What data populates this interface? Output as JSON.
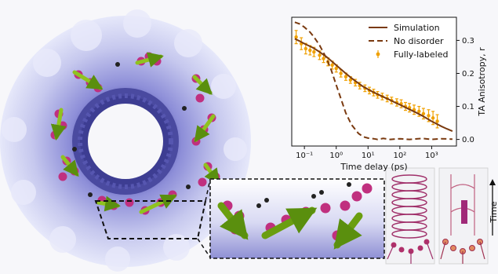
{
  "chart_data": {
    "type": "scatter",
    "xscale": "log",
    "xlabel": "Time delay (ps)",
    "ylabel": "TA Anisotropy, r",
    "xlim": [
      0.04,
      6000
    ],
    "ylim": [
      -0.02,
      0.37
    ],
    "x_ticks": [
      {
        "value": 0.1,
        "label": "10⁻¹"
      },
      {
        "value": 1,
        "label": "10⁰"
      },
      {
        "value": 10,
        "label": "10¹"
      },
      {
        "value": 100,
        "label": "10²"
      },
      {
        "value": 1000,
        "label": "10³"
      }
    ],
    "y_ticks": [
      {
        "value": 0.0,
        "label": "0.0"
      },
      {
        "value": 0.1,
        "label": "0.1"
      },
      {
        "value": 0.2,
        "label": "0.2"
      },
      {
        "value": 0.3,
        "label": "0.3"
      }
    ],
    "legend_position": "top-right",
    "series": [
      {
        "name": "Simulation",
        "style": "solid",
        "color": "#7a3a10",
        "x": [
          0.05,
          0.07,
          0.1,
          0.15,
          0.2,
          0.3,
          0.5,
          0.7,
          1,
          1.5,
          2,
          3,
          5,
          7,
          10,
          15,
          20,
          30,
          50,
          70,
          100,
          150,
          200,
          300,
          500,
          700,
          1000,
          1500,
          2000,
          3000,
          4500
        ],
        "y": [
          0.305,
          0.298,
          0.29,
          0.282,
          0.276,
          0.265,
          0.25,
          0.238,
          0.225,
          0.21,
          0.2,
          0.186,
          0.17,
          0.16,
          0.152,
          0.143,
          0.137,
          0.129,
          0.119,
          0.112,
          0.105,
          0.097,
          0.091,
          0.083,
          0.072,
          0.064,
          0.055,
          0.046,
          0.04,
          0.032,
          0.025
        ]
      },
      {
        "name": "No disorder",
        "style": "dashed",
        "color": "#7a3a10",
        "x": [
          0.05,
          0.07,
          0.1,
          0.15,
          0.2,
          0.3,
          0.5,
          0.7,
          1,
          1.5,
          2,
          3,
          5,
          7,
          10,
          15,
          20,
          30,
          50,
          100,
          200,
          500,
          1000,
          2000,
          4500
        ],
        "y": [
          0.355,
          0.35,
          0.34,
          0.325,
          0.31,
          0.285,
          0.245,
          0.21,
          0.165,
          0.115,
          0.08,
          0.045,
          0.018,
          0.008,
          0.004,
          0.002,
          0.0,
          0.003,
          0.0,
          0.002,
          0.0,
          0.003,
          0.0,
          0.002,
          0.001
        ]
      },
      {
        "name": "Fully-labeled",
        "style": "markers-errorbars",
        "color": "#f0a000",
        "x": [
          0.055,
          0.08,
          0.11,
          0.15,
          0.2,
          0.3,
          0.4,
          0.55,
          0.75,
          1.0,
          1.4,
          2.0,
          2.8,
          4.0,
          5.5,
          8,
          11,
          15,
          20,
          28,
          40,
          55,
          80,
          110,
          150,
          200,
          280,
          400,
          550,
          800,
          1100,
          1500
        ],
        "y": [
          0.31,
          0.29,
          0.275,
          0.27,
          0.265,
          0.255,
          0.245,
          0.235,
          0.225,
          0.215,
          0.2,
          0.19,
          0.18,
          0.172,
          0.163,
          0.155,
          0.148,
          0.142,
          0.135,
          0.13,
          0.124,
          0.118,
          0.112,
          0.108,
          0.1,
          0.096,
          0.09,
          0.085,
          0.078,
          0.072,
          0.065,
          0.055
        ],
        "err": [
          0.02,
          0.018,
          0.016,
          0.014,
          0.014,
          0.013,
          0.012,
          0.012,
          0.012,
          0.011,
          0.011,
          0.011,
          0.01,
          0.01,
          0.01,
          0.01,
          0.01,
          0.01,
          0.01,
          0.01,
          0.01,
          0.01,
          0.011,
          0.012,
          0.012,
          0.013,
          0.014,
          0.015,
          0.016,
          0.018,
          0.02,
          0.02
        ]
      }
    ]
  },
  "side_panel": {
    "axis_label": "Time"
  }
}
